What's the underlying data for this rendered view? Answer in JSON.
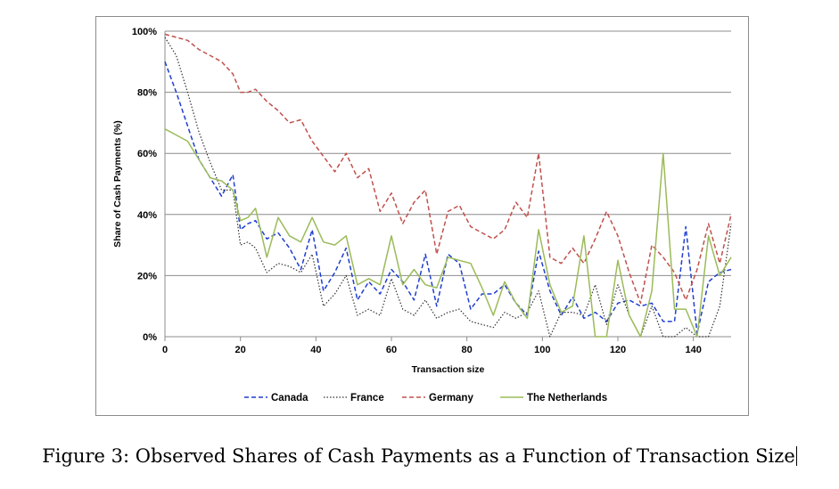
{
  "caption": "Figure 3: Observed Shares of Cash Payments as a Function of Transaction Size",
  "chart_data": {
    "type": "line",
    "title": "",
    "xlabel": "Transaction size",
    "ylabel": "Share of Cash Payments (%)",
    "xlim": [
      0,
      150
    ],
    "ylim": [
      0,
      100
    ],
    "x_ticks": [
      "0",
      "20",
      "40",
      "60",
      "80",
      "100",
      "120",
      "140"
    ],
    "y_ticks": [
      "0%",
      "20%",
      "40%",
      "60%",
      "80%",
      "100%"
    ],
    "grid": "horizontal",
    "legend_position": "bottom",
    "series": [
      {
        "name": "Canada",
        "color": "#1f3fcf",
        "style": "dashed",
        "x": [
          0,
          3,
          6,
          9,
          12,
          15,
          18,
          20,
          22,
          24,
          27,
          30,
          33,
          36,
          39,
          42,
          45,
          48,
          51,
          54,
          57,
          60,
          63,
          66,
          69,
          72,
          75,
          78,
          81,
          84,
          87,
          90,
          93,
          96,
          99,
          102,
          105,
          108,
          111,
          114,
          117,
          120,
          123,
          126,
          129,
          132,
          135,
          138,
          141,
          144,
          147,
          150
        ],
        "y": [
          90,
          80,
          69,
          58,
          52,
          46,
          53,
          35,
          37,
          38,
          32,
          34,
          29,
          22,
          35,
          15,
          21,
          29,
          12,
          18,
          14,
          22,
          18,
          12,
          27,
          10,
          27,
          24,
          9,
          14,
          14,
          17,
          11,
          7,
          28,
          15,
          7,
          13,
          6,
          8,
          5,
          11,
          12,
          10,
          11,
          5,
          5,
          36,
          1,
          18,
          21,
          22
        ]
      },
      {
        "name": "France",
        "color": "#333333",
        "style": "dotted",
        "x": [
          0,
          3,
          6,
          9,
          12,
          15,
          18,
          20,
          22,
          24,
          27,
          30,
          33,
          36,
          39,
          42,
          45,
          48,
          51,
          54,
          57,
          60,
          63,
          66,
          69,
          72,
          75,
          78,
          81,
          84,
          87,
          90,
          93,
          96,
          99,
          102,
          105,
          108,
          111,
          114,
          117,
          120,
          123,
          126,
          129,
          132,
          135,
          138,
          141,
          144,
          147,
          150
        ],
        "y": [
          98,
          92,
          80,
          67,
          57,
          48,
          48,
          30,
          31,
          29,
          21,
          24,
          23,
          21,
          27,
          10,
          14,
          20,
          7,
          9,
          7,
          19,
          9,
          7,
          12,
          6,
          8,
          9,
          5,
          4,
          3,
          8,
          6,
          8,
          15,
          0,
          8,
          8,
          7,
          17,
          4,
          17,
          7,
          0,
          10,
          0,
          0,
          3,
          0,
          0,
          10,
          37
        ]
      },
      {
        "name": "Germany",
        "color": "#c0504d",
        "style": "dashed",
        "x": [
          0,
          3,
          6,
          9,
          12,
          15,
          18,
          20,
          22,
          24,
          27,
          30,
          33,
          36,
          39,
          42,
          45,
          48,
          51,
          54,
          57,
          60,
          63,
          66,
          69,
          72,
          75,
          78,
          81,
          84,
          87,
          90,
          93,
          96,
          99,
          102,
          105,
          108,
          111,
          114,
          117,
          120,
          123,
          126,
          129,
          132,
          135,
          138,
          141,
          144,
          147,
          150
        ],
        "y": [
          99,
          98,
          97,
          94,
          92,
          90,
          86,
          80,
          80,
          81,
          77,
          74,
          70,
          71,
          64,
          59,
          54,
          60,
          52,
          55,
          41,
          47,
          37,
          44,
          48,
          27,
          41,
          43,
          36,
          34,
          32,
          35,
          44,
          39,
          60,
          26,
          24,
          29,
          24,
          32,
          41,
          33,
          21,
          11,
          30,
          26,
          21,
          12,
          22,
          37,
          24,
          40
        ]
      },
      {
        "name": "The Netherlands",
        "color": "#9bbb59",
        "style": "solid",
        "x": [
          0,
          3,
          6,
          9,
          12,
          15,
          18,
          20,
          22,
          24,
          27,
          30,
          33,
          36,
          39,
          42,
          45,
          48,
          51,
          54,
          57,
          60,
          63,
          66,
          69,
          72,
          75,
          78,
          81,
          84,
          87,
          90,
          93,
          96,
          99,
          102,
          105,
          108,
          111,
          114,
          117,
          120,
          123,
          126,
          129,
          132,
          135,
          138,
          141,
          144,
          147,
          150
        ],
        "y": [
          68,
          66,
          64,
          58,
          52,
          51,
          48,
          38,
          39,
          42,
          26,
          39,
          33,
          31,
          39,
          31,
          30,
          33,
          17,
          19,
          17,
          33,
          17,
          22,
          17,
          16,
          26,
          25,
          24,
          16,
          7,
          18,
          11,
          6,
          35,
          17,
          8,
          10,
          33,
          0,
          0,
          25,
          7,
          0,
          15,
          60,
          9,
          9,
          0,
          33,
          20,
          26
        ]
      }
    ]
  }
}
